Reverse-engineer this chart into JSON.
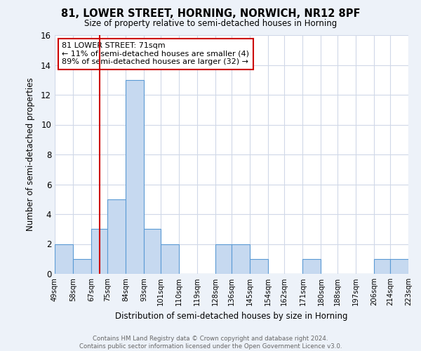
{
  "title": "81, LOWER STREET, HORNING, NORWICH, NR12 8PF",
  "subtitle": "Size of property relative to semi-detached houses in Horning",
  "xlabel": "Distribution of semi-detached houses by size in Horning",
  "ylabel": "Number of semi-detached properties",
  "bin_edges": [
    49,
    58,
    67,
    75,
    84,
    93,
    101,
    110,
    119,
    128,
    136,
    145,
    154,
    162,
    171,
    180,
    188,
    197,
    206,
    214,
    223
  ],
  "counts": [
    2,
    1,
    3,
    5,
    13,
    3,
    2,
    0,
    0,
    2,
    2,
    1,
    0,
    0,
    1,
    0,
    0,
    0,
    1,
    1
  ],
  "bar_color": "#c6d9f0",
  "bar_edge_color": "#5b9bd5",
  "grid_color": "#d0d8e8",
  "subject_value": 71,
  "subject_line_color": "#cc0000",
  "annotation_line1": "81 LOWER STREET: 71sqm",
  "annotation_line2": "← 11% of semi-detached houses are smaller (4)",
  "annotation_line3": "89% of semi-detached houses are larger (32) →",
  "annotation_box_edge_color": "#cc0000",
  "ylim": [
    0,
    16
  ],
  "yticks": [
    0,
    2,
    4,
    6,
    8,
    10,
    12,
    14,
    16
  ],
  "tick_labels": [
    "49sqm",
    "58sqm",
    "67sqm",
    "75sqm",
    "84sqm",
    "93sqm",
    "101sqm",
    "110sqm",
    "119sqm",
    "128sqm",
    "136sqm",
    "145sqm",
    "154sqm",
    "162sqm",
    "171sqm",
    "180sqm",
    "188sqm",
    "197sqm",
    "206sqm",
    "214sqm",
    "223sqm"
  ],
  "footer_text": "Contains HM Land Registry data © Crown copyright and database right 2024.\nContains public sector information licensed under the Open Government Licence v3.0.",
  "bg_color": "#edf2f9",
  "plot_bg_color": "#ffffff"
}
